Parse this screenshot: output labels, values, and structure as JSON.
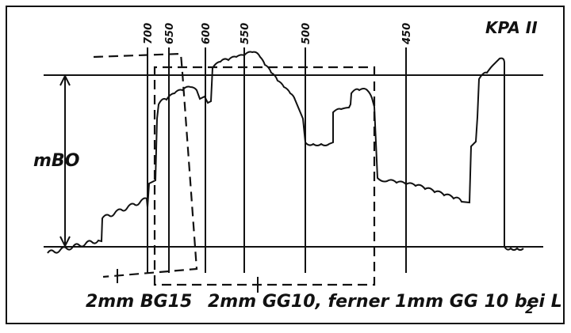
{
  "title": "KPA II",
  "wavelength_labels": [
    "700",
    "650",
    "600",
    "550",
    "500",
    "450"
  ],
  "axis_label": "mBO",
  "filter_left": "2mm BG15",
  "filter_right": "2mm GG10, ferner 1mm GG 10 bei L",
  "filter_right_subscript": "2"
}
